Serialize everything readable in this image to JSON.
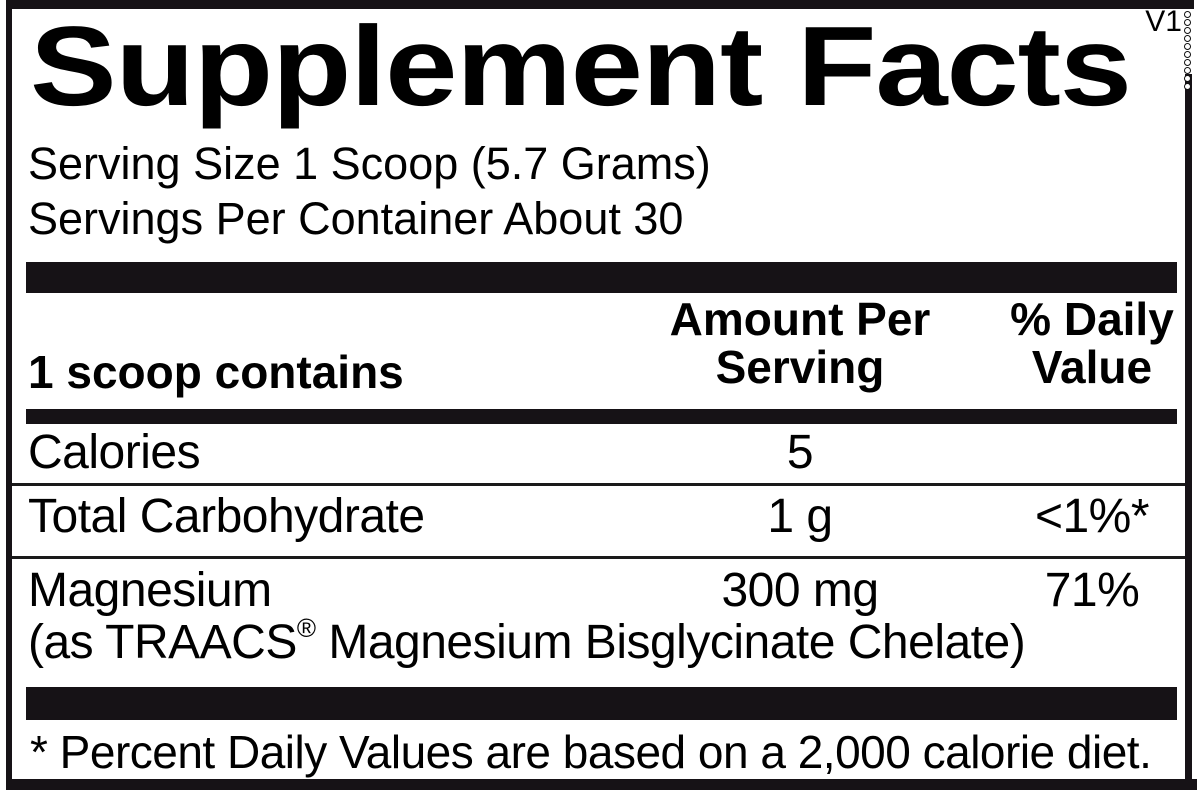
{
  "colors": {
    "ink": "#000000",
    "bar": "#161216",
    "background": "#ffffff"
  },
  "version_tag": "V1",
  "title": "Supplement Facts",
  "serving": {
    "size_line": "Serving Size 1 Scoop (5.7 Grams)",
    "per_container_line": "Servings Per Container About 30"
  },
  "table": {
    "header": {
      "col_item": "1 scoop contains",
      "col_amount_line1": "Amount Per",
      "col_amount_line2": "Serving",
      "col_dv_line1": "% Daily",
      "col_dv_line2": "Value"
    },
    "rows": [
      {
        "name": "Calories",
        "amount": "5",
        "daily_value": ""
      },
      {
        "name": "Total Carbohydrate",
        "amount": "1 g",
        "daily_value": "<1%*"
      },
      {
        "name": "Magnesium",
        "amount": "300 mg",
        "daily_value": "71%",
        "note_prefix": "(as TRAACS",
        "note_trademark": "®",
        "note_suffix": " Magnesium Bisglycinate Chelate)"
      }
    ]
  },
  "footnote": "* Percent Daily Values are based on a 2,000 calorie diet."
}
